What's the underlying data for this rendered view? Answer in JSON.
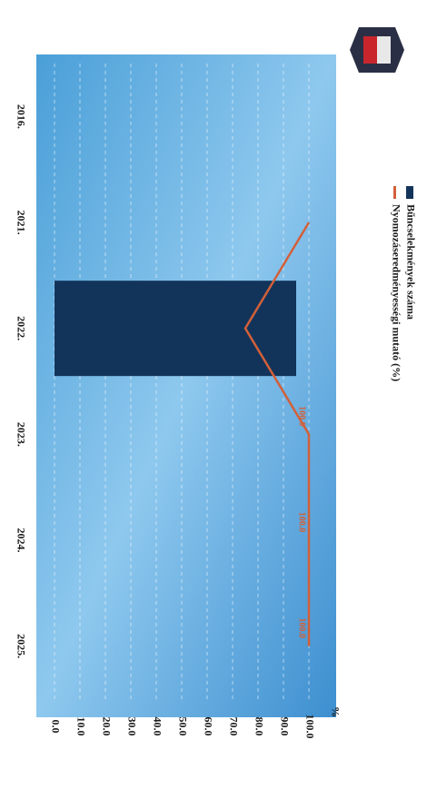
{
  "chart_data": {
    "type": "bar-line",
    "ylabel": "%",
    "categories": [
      "2016.",
      "2021.",
      "2022.",
      "2023.",
      "2024.",
      "2025."
    ],
    "series": [
      {
        "name": "Bűncselekmények száma",
        "type": "bar",
        "color": "#13345a",
        "values": [
          null,
          null,
          95,
          null,
          null,
          null
        ]
      },
      {
        "name": "Nyomozáseredményességi mutató (%)",
        "type": "line",
        "color": "#d2603a",
        "values": [
          null,
          100,
          75,
          100,
          100,
          100
        ],
        "value_labels": [
          null,
          null,
          null,
          "100.0",
          "100.0",
          "100.0"
        ]
      }
    ],
    "ylim": [
      0,
      100
    ],
    "yticks": [
      {
        "value": 0,
        "label": "0.0"
      },
      {
        "value": 10,
        "label": "10.0"
      },
      {
        "value": 20,
        "label": "20.0"
      },
      {
        "value": 30,
        "label": "30.0"
      },
      {
        "value": 40,
        "label": "40.0"
      },
      {
        "value": 50,
        "label": "50.0"
      },
      {
        "value": 60,
        "label": "60.0"
      },
      {
        "value": 70,
        "label": "70.0"
      },
      {
        "value": 80,
        "label": "80.0"
      },
      {
        "value": 90,
        "label": "90.0"
      },
      {
        "value": 100,
        "label": "100.0"
      }
    ],
    "grid": true
  }
}
